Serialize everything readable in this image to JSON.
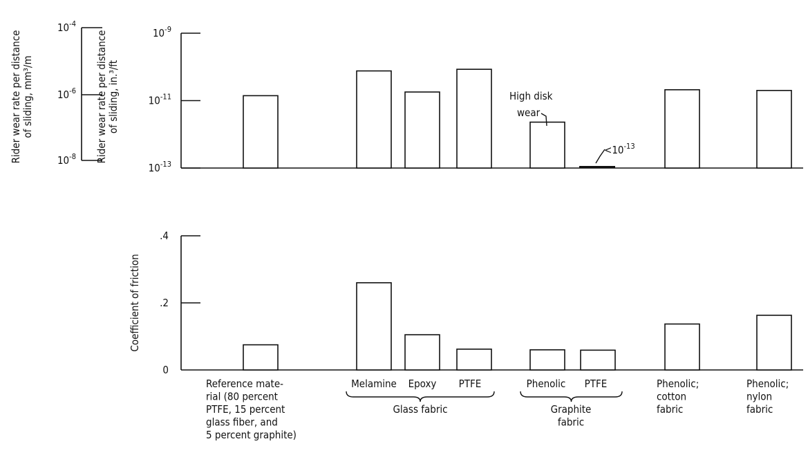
{
  "chart_data": [
    {
      "type": "bar",
      "scale": "log",
      "ylabel_outer": "Rider wear rate per distance of sliding, mm³/m",
      "ylabel_outer_lines": [
        "Rider wear rate per distance",
        "of sliding, mm³/m"
      ],
      "ylabel_inner": "Rider wear rate per distance of sliding, in.³/ft",
      "ylabel_inner_lines": [
        "Rider wear rate per distance",
        "of sliding, in.³/ft"
      ],
      "outer_ticks": [
        {
          "base": "10",
          "exp": "-4"
        },
        {
          "base": "10",
          "exp": "-6"
        },
        {
          "base": "10",
          "exp": "-8"
        }
      ],
      "inner_ticks": [
        {
          "base": "10",
          "exp": "-9",
          "value": 1e-09
        },
        {
          "base": "10",
          "exp": "-11",
          "value": 1e-11
        },
        {
          "base": "10",
          "exp": "-13",
          "value": 1e-13
        }
      ],
      "ylim": [
        1e-13,
        1e-09
      ],
      "values_in3_per_ft": [
        1.4e-11,
        7.6e-11,
        1.8e-11,
        8.5e-11,
        2.3e-12,
        1e-13,
        2.1e-11,
        2e-11
      ],
      "annotations": [
        {
          "text": "High disk wear",
          "lines": [
            "High disk",
            "wear"
          ],
          "bar_index": 4
        },
        {
          "text": "<10-13",
          "prefix": "<",
          "base": "10",
          "exp": "-13",
          "bar_index": 5
        }
      ]
    },
    {
      "type": "bar",
      "ylabel": "Coefficient of friction",
      "ylim": [
        0,
        0.4
      ],
      "ticks": [
        {
          "label": ".4",
          "value": 0.4
        },
        {
          "label": ".2",
          "value": 0.2
        },
        {
          "label": "0",
          "value": 0
        }
      ],
      "values": [
        0.075,
        0.26,
        0.105,
        0.062,
        0.06,
        0.059,
        0.137,
        0.163
      ]
    }
  ],
  "categories": [
    {
      "label": "Reference material (80 percent PTFE, 15 percent glass fiber, and 5 percent graphite)",
      "lines": [
        "Reference mate-",
        "rial (80 percent",
        "PTFE, 15 percent",
        "glass fiber, and",
        "5 percent graphite)"
      ]
    },
    {
      "label": "Melamine",
      "lines": [
        "Melamine"
      ]
    },
    {
      "label": "Epoxy",
      "lines": [
        "Epoxy"
      ]
    },
    {
      "label": "PTFE",
      "lines": [
        "PTFE"
      ]
    },
    {
      "label": "Phenolic",
      "lines": [
        "Phenolic"
      ]
    },
    {
      "label": "PTFE",
      "lines": [
        "PTFE"
      ]
    },
    {
      "label": "Phenolic; cotton fabric",
      "lines": [
        "Phenolic;",
        "cotton",
        "fabric"
      ]
    },
    {
      "label": "Phenolic; nylon fabric",
      "lines": [
        "Phenolic;",
        "nylon",
        "fabric"
      ]
    }
  ],
  "groups": [
    {
      "label": "Glass fabric",
      "lines": [
        "Glass fabric"
      ],
      "members": [
        1,
        2,
        3
      ]
    },
    {
      "label": "Graphite fabric",
      "lines": [
        "Graphite",
        "fabric"
      ],
      "members": [
        4,
        5
      ]
    }
  ]
}
